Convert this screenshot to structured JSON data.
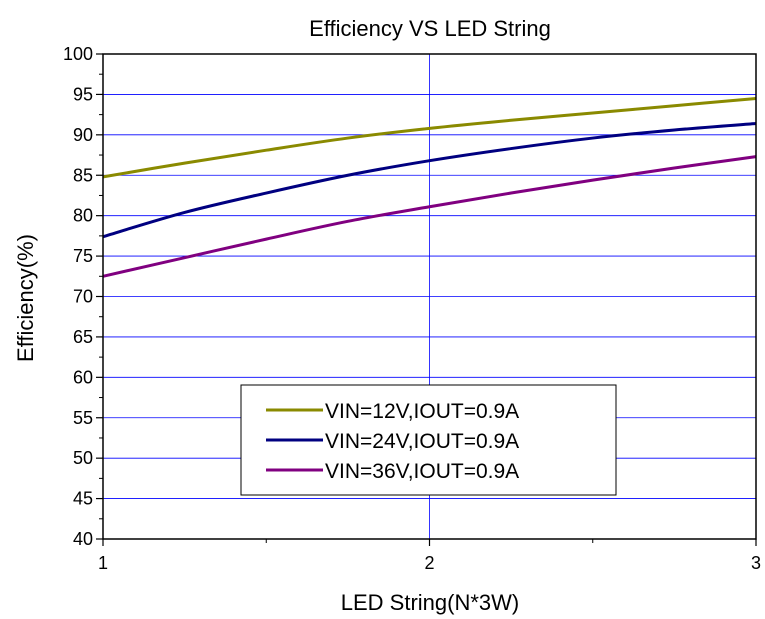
{
  "chart_data": {
    "type": "line",
    "title": "Efficiency VS LED String",
    "xlabel": "LED String(N*3W)",
    "ylabel": "Efficiency(%)",
    "xlim": [
      1,
      3
    ],
    "ylim": [
      40,
      100
    ],
    "x_ticks": [
      1,
      2,
      3
    ],
    "y_ticks": [
      40,
      45,
      50,
      55,
      60,
      65,
      70,
      75,
      80,
      85,
      90,
      95,
      100
    ],
    "grid": true,
    "legend_position": "bottom-center",
    "series": [
      {
        "name": "VIN=12V,IOUT=0.9A",
        "color": "#8a8a00",
        "x": [
          1.0,
          1.25,
          1.5,
          1.75,
          2.0,
          2.25,
          2.5,
          2.75,
          3.0
        ],
        "y": [
          84.8,
          86.5,
          88.1,
          89.6,
          90.8,
          91.8,
          92.7,
          93.6,
          94.5
        ]
      },
      {
        "name": "VIN=24V,IOUT=0.9A",
        "color": "#000080",
        "x": [
          1.0,
          1.25,
          1.5,
          1.75,
          2.0,
          2.25,
          2.5,
          2.75,
          3.0
        ],
        "y": [
          77.4,
          80.4,
          82.8,
          85.0,
          86.8,
          88.3,
          89.6,
          90.6,
          91.4
        ]
      },
      {
        "name": "VIN=36V,IOUT=0.9A",
        "color": "#800080",
        "x": [
          1.0,
          1.25,
          1.5,
          1.75,
          2.0,
          2.25,
          2.5,
          2.75,
          3.0
        ],
        "y": [
          72.5,
          74.8,
          77.1,
          79.3,
          81.1,
          82.8,
          84.4,
          85.9,
          87.3
        ]
      }
    ]
  }
}
